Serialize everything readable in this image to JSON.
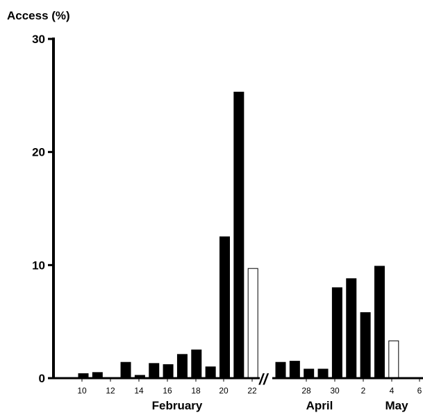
{
  "chart_data": {
    "type": "bar",
    "ylabel": "Access (%)",
    "ylim": [
      0,
      30
    ],
    "yticks": [
      "0",
      "10",
      "20",
      "30"
    ],
    "xticks": [
      "10",
      "12",
      "14",
      "16",
      "18",
      "20",
      "22",
      "28",
      "30",
      "2",
      "4",
      "6"
    ],
    "month_labels": [
      "February",
      "April",
      "May"
    ],
    "axis_break": "//",
    "segments": [
      {
        "period": "February",
        "bars": [
          {
            "x": "10",
            "value": 0.4,
            "fill": "black"
          },
          {
            "x": "11",
            "value": 0.5,
            "fill": "black"
          },
          {
            "x": "12",
            "value": 0.0,
            "fill": "black"
          },
          {
            "x": "13",
            "value": 1.4,
            "fill": "black"
          },
          {
            "x": "14",
            "value": 0.25,
            "fill": "black"
          },
          {
            "x": "15",
            "value": 1.3,
            "fill": "black"
          },
          {
            "x": "16",
            "value": 1.2,
            "fill": "black"
          },
          {
            "x": "17",
            "value": 2.1,
            "fill": "black"
          },
          {
            "x": "18",
            "value": 2.5,
            "fill": "black"
          },
          {
            "x": "19",
            "value": 1.0,
            "fill": "black"
          },
          {
            "x": "20",
            "value": 12.5,
            "fill": "black"
          },
          {
            "x": "21",
            "value": 25.3,
            "fill": "black"
          },
          {
            "x": "22",
            "value": 9.7,
            "fill": "white"
          }
        ]
      },
      {
        "period": "April-May",
        "bars": [
          {
            "x": "26",
            "value": 1.4,
            "fill": "black"
          },
          {
            "x": "27",
            "value": 1.5,
            "fill": "black"
          },
          {
            "x": "28",
            "value": 0.8,
            "fill": "black"
          },
          {
            "x": "29",
            "value": 0.8,
            "fill": "black"
          },
          {
            "x": "30",
            "value": 8.0,
            "fill": "black"
          },
          {
            "x": "1",
            "value": 8.8,
            "fill": "black"
          },
          {
            "x": "2",
            "value": 5.8,
            "fill": "black"
          },
          {
            "x": "3",
            "value": 9.9,
            "fill": "black"
          },
          {
            "x": "4",
            "value": 3.3,
            "fill": "white"
          }
        ]
      }
    ],
    "colors": {
      "filled": "#000000",
      "open": "#ffffff",
      "axis": "#000000"
    }
  }
}
